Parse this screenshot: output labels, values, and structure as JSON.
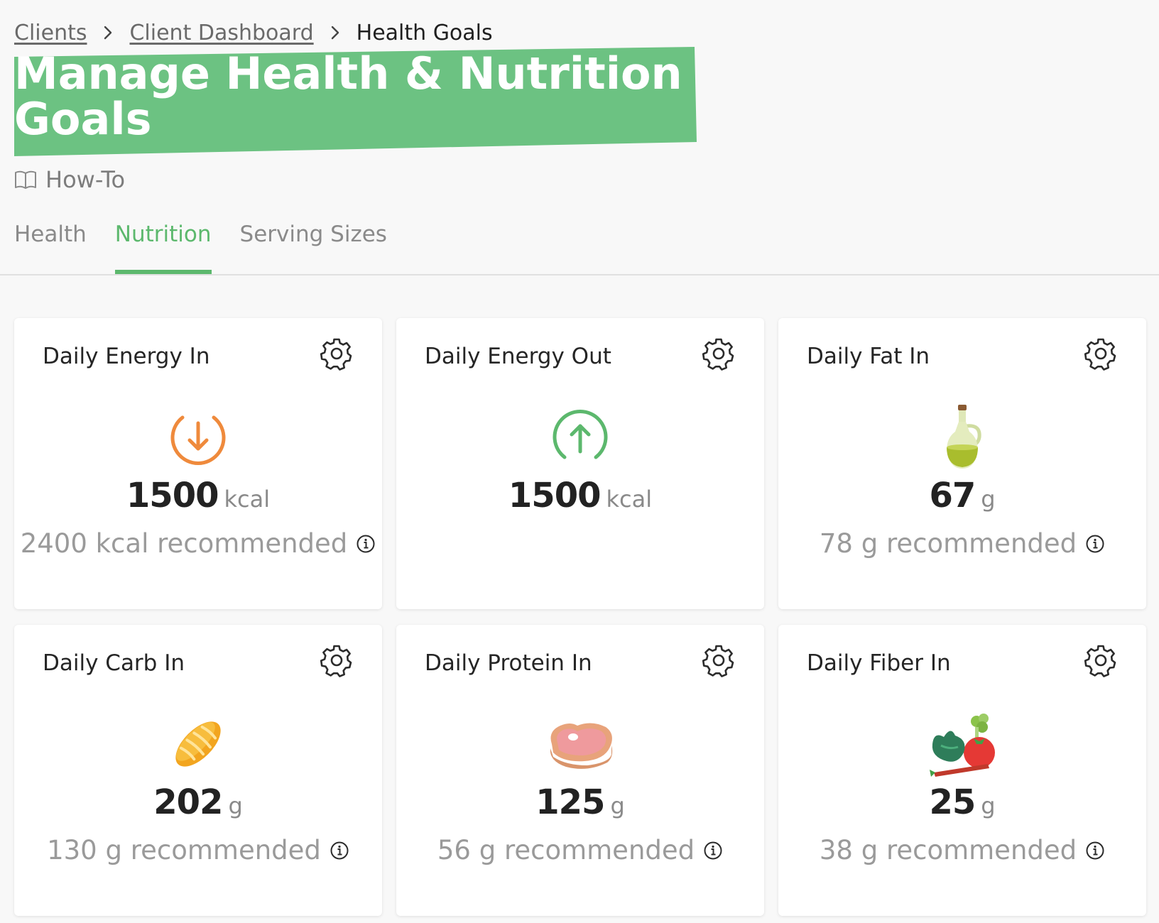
{
  "breadcrumb": {
    "items": [
      {
        "label": "Clients"
      },
      {
        "label": "Client Dashboard"
      }
    ],
    "current": "Health Goals"
  },
  "page": {
    "title": "Manage Health & Nutrition Goals",
    "howto_label": "How-To",
    "accent_color": "#5cb86d",
    "title_highlight_color": "#6cc282"
  },
  "tabs": [
    {
      "label": "Health",
      "active": false
    },
    {
      "label": "Nutrition",
      "active": true
    },
    {
      "label": "Serving Sizes",
      "active": false
    }
  ],
  "cards": [
    {
      "title": "Daily Energy In",
      "icon": "arrow-down-circle-icon",
      "value": "1500",
      "unit": "kcal",
      "recommended": "2400 kcal recommended"
    },
    {
      "title": "Daily Energy Out",
      "icon": "arrow-up-circle-icon",
      "value": "1500",
      "unit": "kcal",
      "recommended": ""
    },
    {
      "title": "Daily Fat In",
      "icon": "olive-oil-bottle-icon",
      "value": "67",
      "unit": "g",
      "recommended": "78 g recommended"
    },
    {
      "title": "Daily Carb In",
      "icon": "bread-icon",
      "value": "202",
      "unit": "g",
      "recommended": "130 g recommended"
    },
    {
      "title": "Daily Protein In",
      "icon": "steak-icon",
      "value": "125",
      "unit": "g",
      "recommended": "56 g recommended"
    },
    {
      "title": "Daily Fiber In",
      "icon": "vegetables-icon",
      "value": "25",
      "unit": "g",
      "recommended": "38 g recommended"
    }
  ]
}
